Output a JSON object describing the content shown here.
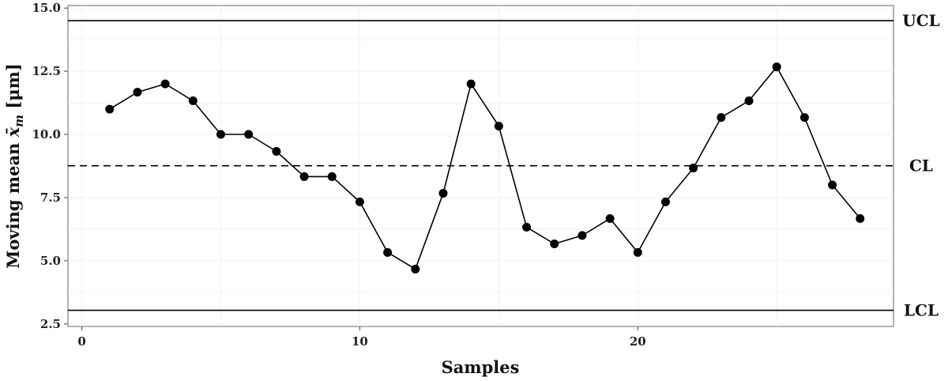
{
  "chart_data": {
    "type": "line",
    "xlabel": "Samples",
    "ylabel_main": "Moving mean ",
    "ylabel_symbol": "x̄",
    "ylabel_subscript": "m",
    "ylabel_unit": " [μm]",
    "xlim": [
      -0.5,
      29.2
    ],
    "ylim": [
      2.4,
      15.1
    ],
    "x_ticks": [
      0,
      10,
      20
    ],
    "x_tick_labels": [
      "0",
      "10",
      "20"
    ],
    "y_ticks": [
      2.5,
      5.0,
      7.5,
      10.0,
      12.5,
      15.0
    ],
    "y_tick_labels": [
      "2.5",
      "5.0",
      "7.5",
      "10.0",
      "12.5",
      "15.0"
    ],
    "grid": true,
    "series": [
      {
        "x": [
          1,
          2,
          3,
          4,
          5,
          6,
          7,
          8,
          9,
          10,
          11,
          12,
          13,
          14,
          15,
          16,
          17,
          18,
          19,
          20,
          21,
          22,
          23,
          24,
          25,
          26,
          27,
          28
        ],
        "values": [
          11.0,
          11.67,
          12.0,
          11.33,
          10.0,
          10.0,
          9.33,
          8.33,
          8.33,
          7.33,
          5.33,
          4.67,
          7.67,
          12.0,
          10.33,
          6.33,
          5.67,
          6.0,
          6.67,
          5.33,
          7.33,
          8.67,
          10.67,
          11.33,
          12.67,
          10.67,
          8.0,
          6.67
        ],
        "color": "#000000"
      }
    ],
    "control_limits": [
      {
        "label": "UCL",
        "value": 14.5,
        "style": "solid"
      },
      {
        "label": "CL",
        "value": 8.76,
        "style": "dashed"
      },
      {
        "label": "LCL",
        "value": 3.04,
        "style": "solid"
      }
    ]
  }
}
